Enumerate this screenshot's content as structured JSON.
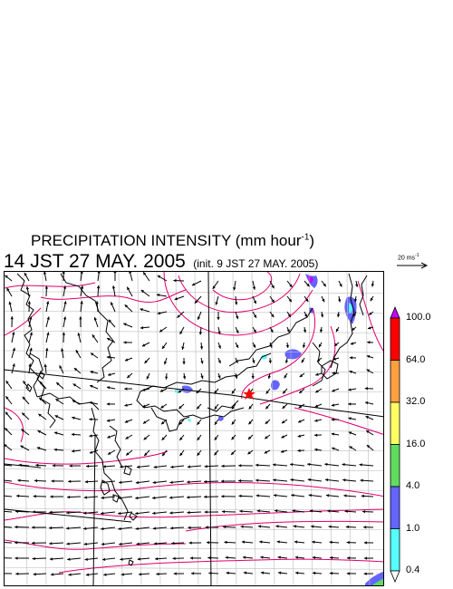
{
  "title": {
    "line1_main": "PRECIPITATION INTENSITY (mm hour",
    "line1_exp": "-1",
    "line1_close": ")",
    "line2_main": "14 JST 27 MAY. 2005",
    "line2_init": "(init. 9 JST 27 MAY. 2005)"
  },
  "vector_ref": {
    "label": "20 ms",
    "exp": "-1"
  },
  "colorbar": {
    "levels": [
      "0.4",
      "1.0",
      "4.0",
      "16.0",
      "32.0",
      "64.0",
      "100.0"
    ],
    "colors": [
      "#55ffff",
      "#6464ff",
      "#5fdc5f",
      "#ffff64",
      "#ffa040",
      "#ff0000",
      "#c800ff"
    ],
    "over_color": "#c800ff",
    "under_color": "#ffffff"
  },
  "map": {
    "coastline_color": "#000000",
    "contour_color": "#e0006e",
    "grid_color": "#bbbbbb",
    "marker": {
      "type": "red-star",
      "color": "#ff0000"
    }
  }
}
